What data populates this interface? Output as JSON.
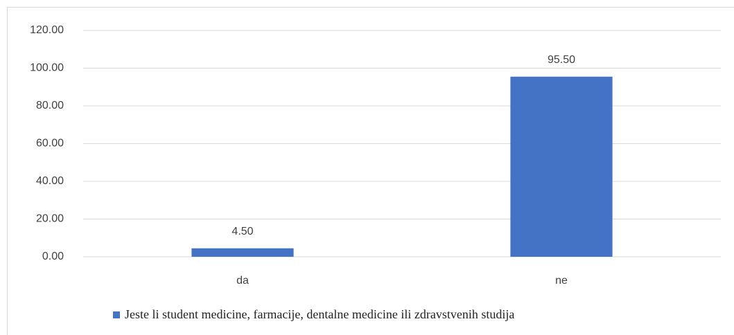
{
  "chart_data": {
    "type": "bar",
    "categories": [
      "da",
      "ne"
    ],
    "series": [
      {
        "name": "Jeste li student medicine, farmacije, dentalne medicine ili zdravstvenih studija",
        "color": "#4472c4",
        "values": [
          4.5,
          95.5
        ],
        "value_labels": [
          "4.50",
          "95.50"
        ]
      }
    ],
    "ylim": [
      0,
      120
    ],
    "yticks": [
      {
        "value": 0,
        "label": "0.00"
      },
      {
        "value": 20,
        "label": "20.00"
      },
      {
        "value": 40,
        "label": "40.00"
      },
      {
        "value": 60,
        "label": "60.00"
      },
      {
        "value": 80,
        "label": "80.00"
      },
      {
        "value": 100,
        "label": "100.00"
      },
      {
        "value": 120,
        "label": "120.00"
      }
    ],
    "grid": true,
    "legend": "bottom"
  }
}
